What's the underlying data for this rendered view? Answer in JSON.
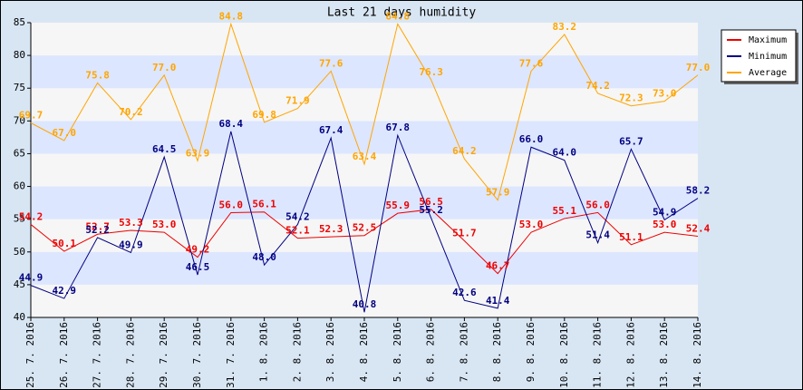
{
  "chart_data": {
    "type": "line",
    "title": "Last 21 days humidity",
    "categories": [
      "25. 7. 2016",
      "26. 7. 2016",
      "27. 7. 2016",
      "28. 7. 2016",
      "29. 7. 2016",
      "30. 7. 2016",
      "31. 7. 2016",
      "1. 8. 2016",
      "2. 8. 2016",
      "3. 8. 2016",
      "4. 8. 2016",
      "5. 8. 2016",
      "6. 8. 2016",
      "7. 8. 2016",
      "8. 8. 2016",
      "9. 8. 2016",
      "10. 8. 2016",
      "11. 8. 2016",
      "12. 8. 2016",
      "13. 8. 2016",
      "14. 8. 2016"
    ],
    "series": [
      {
        "name": "Maximum",
        "color": "#ee0000",
        "values": [
          54.2,
          50.1,
          52.7,
          53.3,
          53.0,
          49.2,
          56.0,
          56.1,
          52.1,
          52.3,
          52.5,
          55.9,
          56.5,
          51.7,
          46.7,
          53.0,
          55.1,
          56.0,
          51.1,
          53.0,
          52.4
        ],
        "value_labels": [
          "54.2",
          "50.1",
          "52.7",
          "53.3",
          "53.0",
          "49.2",
          "56.0",
          "56.1",
          "52.1",
          "52.3",
          "52.5",
          "55.9",
          "56.5",
          "51.7",
          "46.7",
          "53.0",
          "55.1",
          "56.0",
          "51.1",
          "53.0",
          "52.4"
        ]
      },
      {
        "name": "Minimum",
        "color": "#000080",
        "values": [
          44.9,
          42.9,
          52.2,
          49.9,
          64.5,
          46.5,
          68.4,
          48.0,
          54.2,
          67.4,
          40.8,
          67.8,
          55.2,
          42.6,
          41.4,
          66.0,
          64.0,
          51.4,
          65.7,
          54.9,
          58.2
        ],
        "value_labels": [
          "44.9",
          "42.9",
          "52.2",
          "49.9",
          "64.5",
          "46.5",
          "68.4",
          "48.0",
          "54.2",
          "67.4",
          "40.8",
          "67.8",
          "55.2",
          "42.6",
          "41.4",
          "66.0",
          "64.0",
          "51.4",
          "65.7",
          "54.9",
          "58.2"
        ]
      },
      {
        "name": "Average",
        "color": "#ffa500",
        "values": [
          69.7,
          67.0,
          75.8,
          70.2,
          77.0,
          63.9,
          84.8,
          69.8,
          71.9,
          77.6,
          63.4,
          84.8,
          76.3,
          64.2,
          57.9,
          77.6,
          83.2,
          74.2,
          72.3,
          73.0,
          77.0
        ],
        "value_labels": [
          "69.7",
          "67.0",
          "75.8",
          "70.2",
          "77.0",
          "63.9",
          "84.8",
          "69.8",
          "71.9",
          "77.6",
          "63.4",
          "84.8",
          "76.3",
          "64.2",
          "57.9",
          "77.6",
          "83.2",
          "74.2",
          "72.3",
          "73.0",
          "77.0"
        ]
      }
    ],
    "ylim": [
      40,
      85
    ],
    "yticks": [
      40,
      45,
      50,
      55,
      60,
      65,
      70,
      75,
      80,
      85
    ],
    "grid": true,
    "band_colors": [
      "#f6f6f6",
      "#dde6ff"
    ],
    "legend": "right"
  }
}
